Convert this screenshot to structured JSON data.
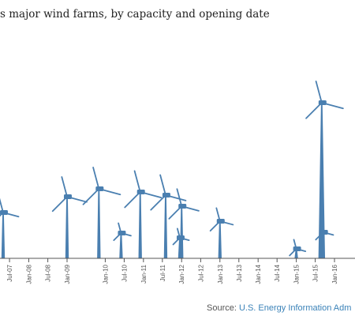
{
  "chart_data": {
    "type": "scatter",
    "title": "s major wind farms, by capacity and opening date",
    "marker": "wind-turbine",
    "x_ticks": [
      "Jul-07",
      "Jan-08",
      "Jul-08",
      "Jan-09",
      "Jan-10",
      "Jul-10",
      "Jan-11",
      "Jul-11",
      "Jan-12",
      "Jul-12",
      "Jan-13",
      "Jul-13",
      "Jan-14",
      "Jul-14",
      "Jan-15",
      "Jul-15",
      "Jan-16"
    ],
    "x_range": [
      "2007-04-01",
      "2016-07-15"
    ],
    "points": [
      {
        "date": "2007-05-01",
        "height": 58
      },
      {
        "date": "2009-01-01",
        "height": 78
      },
      {
        "date": "2009-11-01",
        "height": 88
      },
      {
        "date": "2010-06-01",
        "height": 32
      },
      {
        "date": "2010-12-01",
        "height": 84
      },
      {
        "date": "2011-08-01",
        "height": 80
      },
      {
        "date": "2012-01-01",
        "height": 66
      },
      {
        "date": "2011-12-15",
        "height": 26
      },
      {
        "date": "2013-01-01",
        "height": 47
      },
      {
        "date": "2015-01-01",
        "height": 12
      },
      {
        "date": "2015-09-01",
        "height": 197
      },
      {
        "date": "2015-09-15",
        "height": 33
      }
    ],
    "colors": {
      "turbine": "#4a7fb0",
      "axis": "#555555",
      "source_link": "#3a82b8"
    }
  },
  "source": {
    "prefix": "Source: ",
    "link": "U.S. Energy Information Adm"
  }
}
